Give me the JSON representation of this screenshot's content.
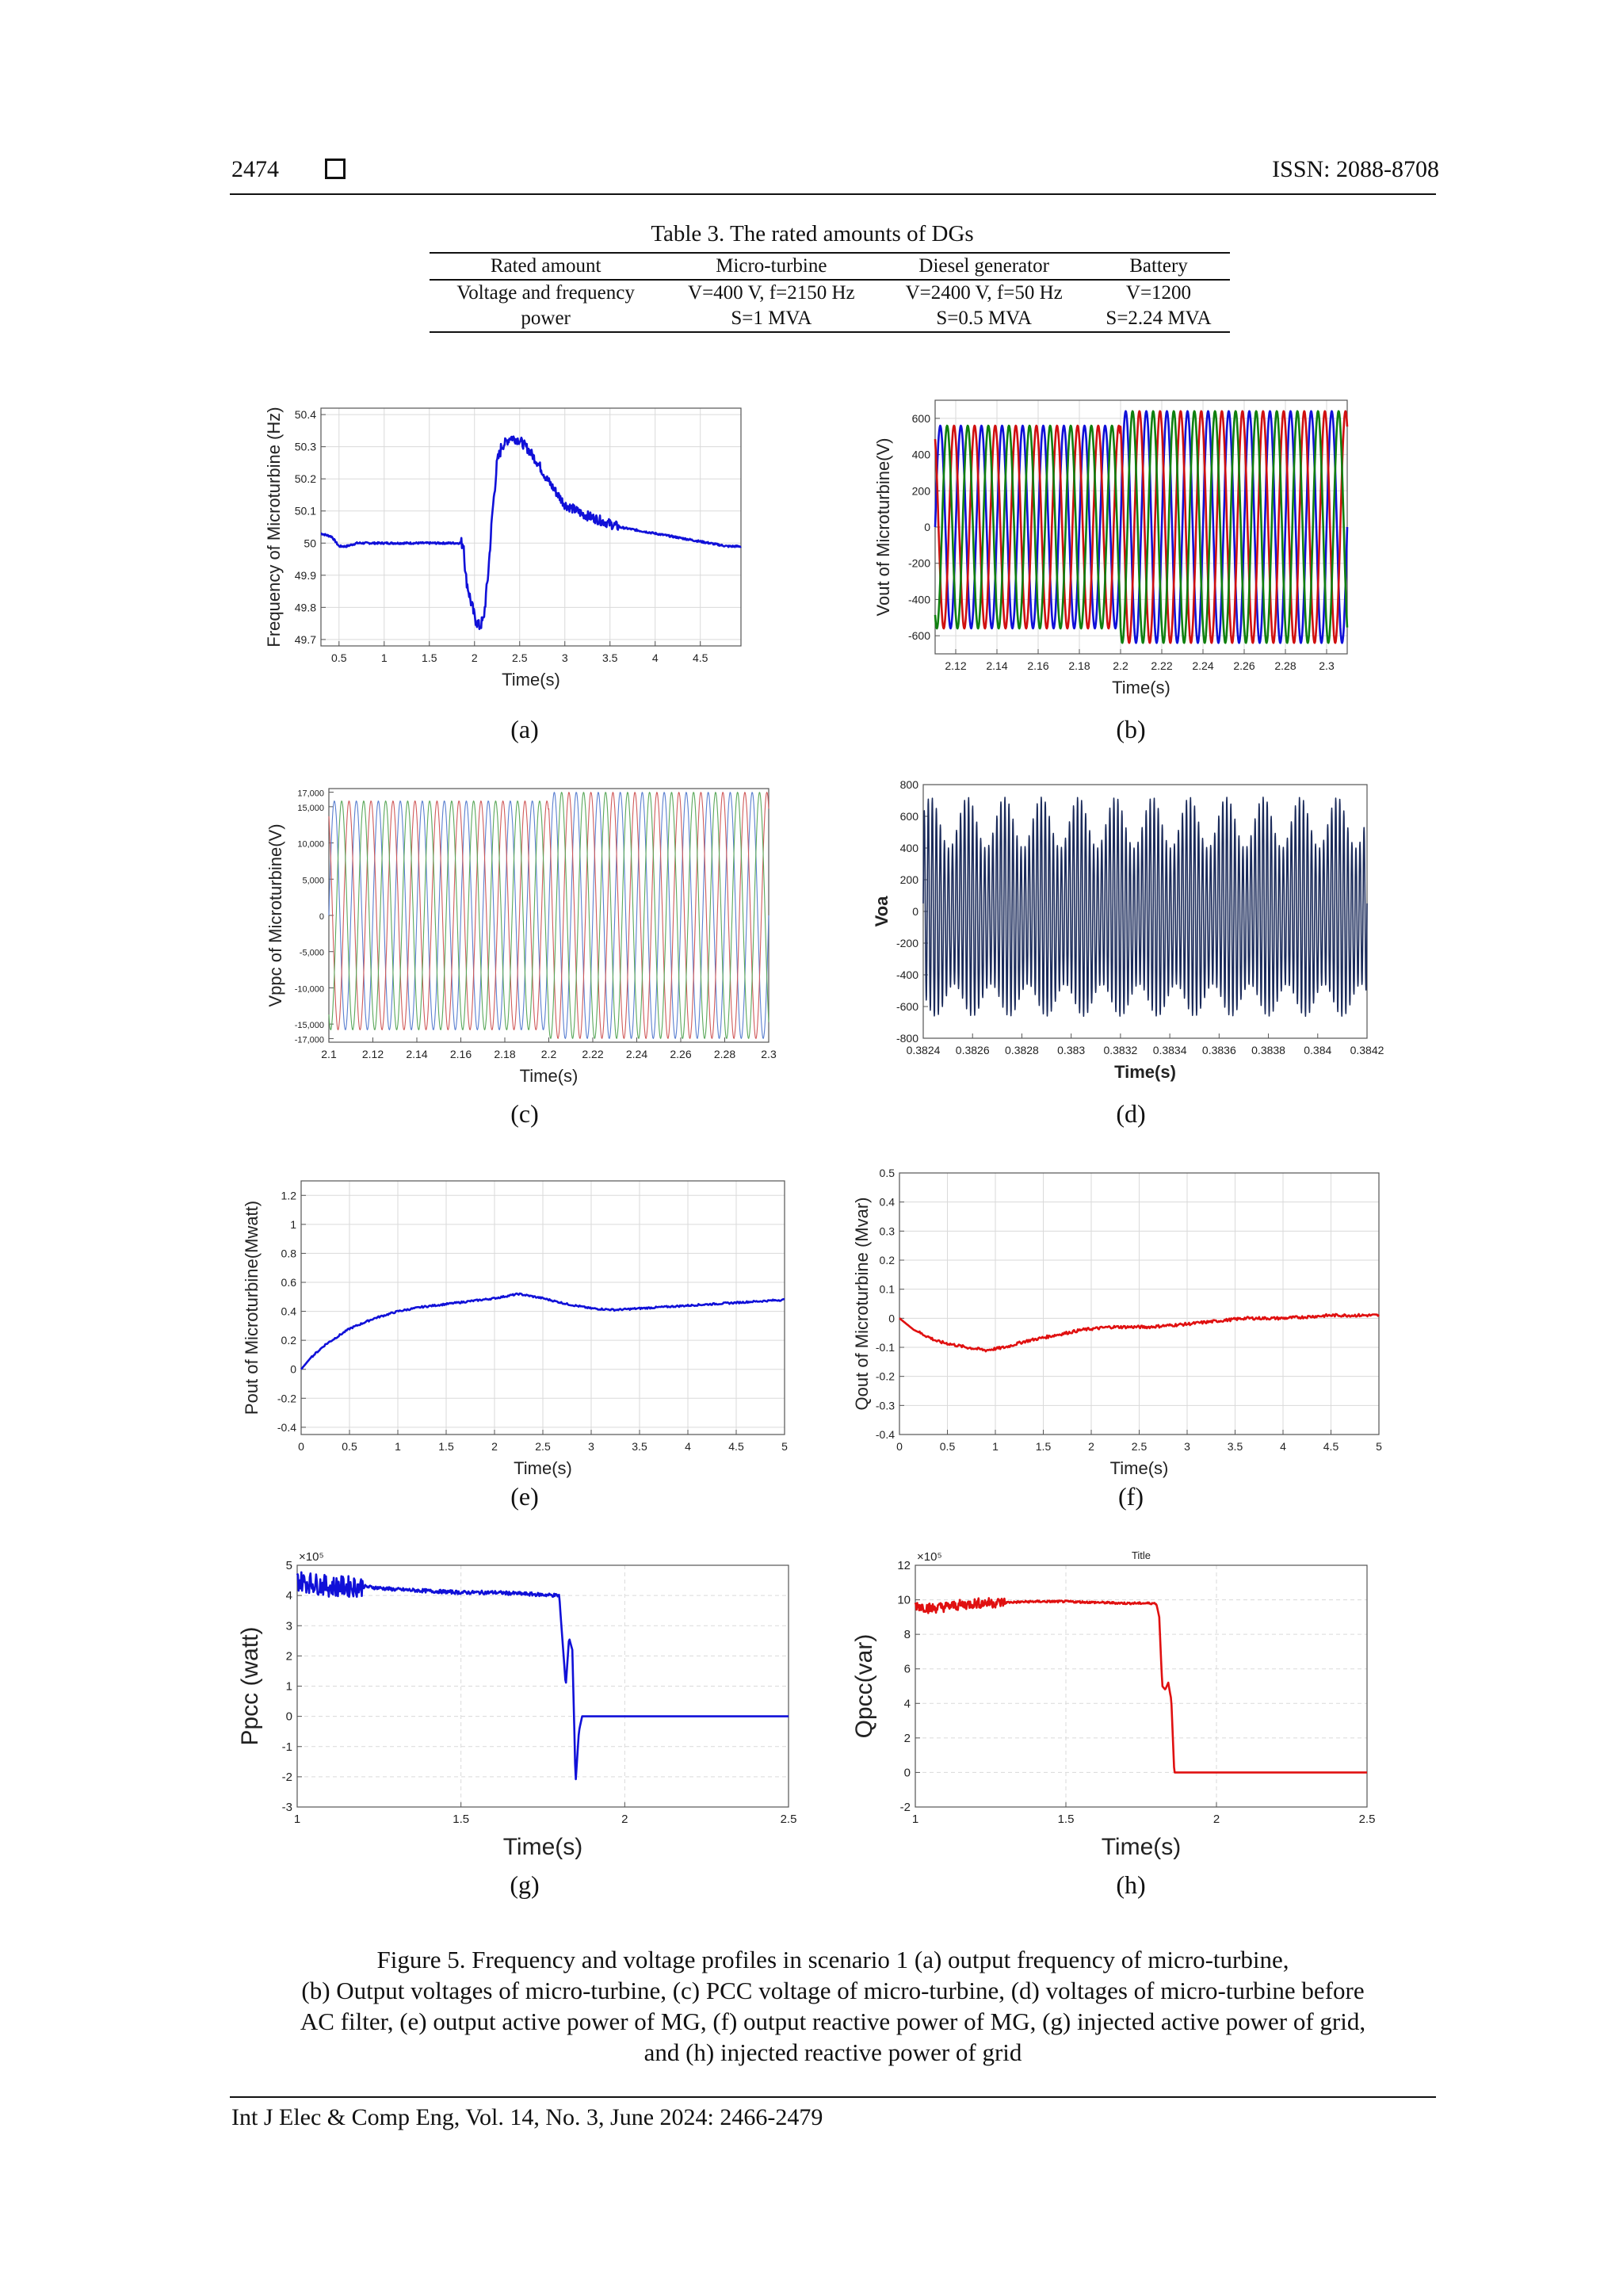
{
  "header": {
    "page_number": "2474",
    "issn": "ISSN: 2088-8708"
  },
  "table": {
    "title": "Table 3. The rated amounts of DGs",
    "headers": [
      "Rated amount",
      "Micro-turbine",
      "Diesel generator",
      "Battery"
    ],
    "rows": [
      [
        "Voltage and frequency",
        "V=400 V, f=2150 Hz",
        "V=2400 V, f=50 Hz",
        "V=1200"
      ],
      [
        "power",
        "S=1 MVA",
        "S=0.5 MVA",
        "S=2.24 MVA"
      ]
    ]
  },
  "subfigure_labels": [
    "(a)",
    "(b)",
    "(c)",
    "(d)",
    "(e)",
    "(f)",
    "(g)",
    "(h)"
  ],
  "caption": {
    "line1": "Figure 5. Frequency and voltage profiles in scenario 1 (a) output frequency of micro-turbine,",
    "line2": "(b) Output voltages of micro-turbine, (c) PCC voltage of micro-turbine, (d) voltages of micro-turbine before",
    "line3": "AC filter, (e) output active power of MG, (f) output reactive power of MG, (g) injected active power of grid,",
    "line4": "and (h) injected reactive power of grid"
  },
  "footer": {
    "text": "Int J Elec & Comp Eng, Vol. 14, No. 3, June 2024: 2466-2479"
  },
  "chart_data": [
    {
      "id": "a",
      "type": "line",
      "xlabel": "Time(s)",
      "ylabel": "Frequency of Microturbine (Hz)",
      "xlim": [
        0.3,
        4.95
      ],
      "ylim": [
        49.68,
        50.42
      ],
      "xticks": [
        0.5,
        1,
        1.5,
        2,
        2.5,
        3,
        3.5,
        4,
        4.5
      ],
      "yticks": [
        49.7,
        49.8,
        49.9,
        50,
        50.1,
        50.2,
        50.3,
        50.4
      ],
      "grid": true,
      "series": [
        {
          "color": "#1010d8",
          "x": [
            0.3,
            0.42,
            0.5,
            0.58,
            0.7,
            0.9,
            1.2,
            1.5,
            1.8,
            1.88,
            1.9,
            1.95,
            2.0,
            2.05,
            2.1,
            2.15,
            2.2,
            2.25,
            2.3,
            2.4,
            2.5,
            2.6,
            2.7,
            2.8,
            2.9,
            3.0,
            3.2,
            3.4,
            3.6,
            3.8,
            4.0,
            4.2,
            4.4,
            4.6,
            4.8,
            4.95
          ],
          "y": [
            50.03,
            50.02,
            49.99,
            49.99,
            50.0,
            50.0,
            50.0,
            50.0,
            50.0,
            50.0,
            49.9,
            49.83,
            49.77,
            49.74,
            49.76,
            49.9,
            50.1,
            50.25,
            50.3,
            50.33,
            50.32,
            50.29,
            50.25,
            50.2,
            50.16,
            50.12,
            50.09,
            50.07,
            50.05,
            50.04,
            50.03,
            50.02,
            50.01,
            50.0,
            49.99,
            49.99
          ]
        }
      ]
    },
    {
      "id": "b",
      "type": "line",
      "xlabel": "Time(s)",
      "ylabel": "Vout of Microturbine(V)",
      "xlim": [
        2.11,
        2.31
      ],
      "ylim": [
        -700,
        700
      ],
      "xticks": [
        2.12,
        2.14,
        2.16,
        2.18,
        2.2,
        2.22,
        2.24,
        2.26,
        2.28,
        2.3
      ],
      "yticks": [
        -600,
        -400,
        -200,
        0,
        200,
        400,
        600
      ],
      "grid": true,
      "amplitude": [
        560,
        640
      ],
      "frequency_hz": 100,
      "series": [
        {
          "color": "#1010d8"
        },
        {
          "color": "#d01010"
        },
        {
          "color": "#108010"
        }
      ]
    },
    {
      "id": "c",
      "type": "line",
      "xlabel": "Time(s)",
      "ylabel": "Vppc of Microturbine(V)",
      "xlim": [
        2.1,
        2.3
      ],
      "ylim": [
        -17500,
        17500
      ],
      "xticks": [
        2.1,
        2.12,
        2.14,
        2.16,
        2.18,
        2.2,
        2.22,
        2.24,
        2.26,
        2.28,
        2.3
      ],
      "yticks": [
        -17000,
        -15000,
        -10000,
        -5000,
        0,
        5000,
        10000,
        15000,
        17000
      ],
      "ytick_labels": [
        "-17,000",
        "-15,000",
        "-10,000",
        "-5,000",
        "0",
        "5,000",
        "10,000",
        "15,000",
        "17,000"
      ],
      "grid": false,
      "amplitude": [
        15800,
        17000
      ],
      "frequency_hz": 100,
      "series": [
        {
          "color": "#5a7fd0"
        },
        {
          "color": "#d05a5a"
        },
        {
          "color": "#5aa85a"
        }
      ]
    },
    {
      "id": "d",
      "type": "line",
      "xlabel": "Time(s)",
      "ylabel": "Voa",
      "xlim": [
        0.3824,
        0.3842
      ],
      "ylim": [
        -800,
        800
      ],
      "xticks": [
        0.3824,
        0.3826,
        0.3828,
        0.383,
        0.3832,
        0.3834,
        0.3836,
        0.3838,
        0.384,
        0.3842
      ],
      "yticks": [
        -800,
        -600,
        -400,
        -200,
        0,
        200,
        400,
        600,
        800
      ],
      "grid": false,
      "series": [
        {
          "color": "#1a2a5a"
        }
      ]
    },
    {
      "id": "e",
      "type": "line",
      "xlabel": "Time(s)",
      "ylabel": "Pout of Microturbine(Mwatt)",
      "xlim": [
        0,
        5
      ],
      "ylim": [
        -0.45,
        1.3
      ],
      "xticks": [
        0,
        0.5,
        1,
        1.5,
        2,
        2.5,
        3,
        3.5,
        4,
        4.5,
        5
      ],
      "yticks": [
        -0.4,
        -0.2,
        0,
        0.2,
        0.4,
        0.6,
        0.8,
        1,
        1.2
      ],
      "grid": true,
      "series": [
        {
          "color": "#1010d8",
          "x": [
            0,
            0.1,
            0.25,
            0.5,
            0.75,
            1.0,
            1.25,
            1.5,
            1.75,
            2.0,
            2.25,
            2.5,
            2.75,
            3.0,
            3.25,
            3.5,
            3.75,
            4.0,
            4.25,
            4.5,
            4.75,
            5.0
          ],
          "y": [
            0.0,
            0.08,
            0.17,
            0.28,
            0.35,
            0.4,
            0.43,
            0.45,
            0.47,
            0.49,
            0.52,
            0.49,
            0.45,
            0.42,
            0.41,
            0.42,
            0.43,
            0.44,
            0.45,
            0.46,
            0.47,
            0.48
          ]
        }
      ]
    },
    {
      "id": "f",
      "type": "line",
      "xlabel": "Time(s)",
      "ylabel": "Qout of Microturbine (Mvar)",
      "xlim": [
        0,
        5
      ],
      "ylim": [
        -0.4,
        0.5
      ],
      "xticks": [
        0,
        0.5,
        1,
        1.5,
        2,
        2.5,
        3,
        3.5,
        4,
        4.5,
        5
      ],
      "yticks": [
        -0.4,
        -0.3,
        -0.2,
        -0.1,
        0,
        0.1,
        0.2,
        0.3,
        0.4,
        0.5
      ],
      "grid": true,
      "series": [
        {
          "color": "#e01010",
          "x": [
            0,
            0.15,
            0.4,
            0.7,
            0.9,
            1.1,
            1.3,
            1.6,
            1.9,
            2.2,
            2.6,
            3.0,
            3.3,
            3.6,
            4.0,
            4.5,
            5.0
          ],
          "y": [
            0.0,
            -0.04,
            -0.08,
            -0.1,
            -0.11,
            -0.1,
            -0.08,
            -0.06,
            -0.04,
            -0.03,
            -0.03,
            -0.02,
            -0.01,
            0.0,
            0.0,
            0.01,
            0.01
          ]
        }
      ]
    },
    {
      "id": "g",
      "type": "line",
      "xlabel": "Time(s)",
      "ylabel": "Ppcc (watt)",
      "y_exponent": "×10⁵",
      "xlim": [
        1,
        2.5
      ],
      "ylim": [
        -3,
        5
      ],
      "xticks": [
        1,
        1.5,
        2,
        2.5
      ],
      "yticks": [
        -3,
        -2,
        -1,
        0,
        1,
        2,
        3,
        4,
        5
      ],
      "grid": true,
      "series": [
        {
          "color": "#1010d8",
          "x": [
            1.0,
            1.05,
            1.1,
            1.2,
            1.3,
            1.4,
            1.5,
            1.6,
            1.7,
            1.8,
            1.82,
            1.83,
            1.84,
            1.85,
            1.86,
            1.87,
            1.9,
            2.0,
            2.2,
            2.5
          ],
          "y": [
            4.5,
            4.4,
            4.3,
            4.3,
            4.2,
            4.15,
            4.1,
            4.1,
            4.05,
            4.0,
            1.0,
            2.6,
            2.2,
            -2.2,
            -0.5,
            0.0,
            0.0,
            0.0,
            0.0,
            0.0
          ]
        }
      ]
    },
    {
      "id": "h",
      "type": "line",
      "title": "Title",
      "xlabel": "Time(s)",
      "ylabel": "Qpcc(var)",
      "y_exponent": "×10⁵",
      "xlim": [
        1,
        2.5
      ],
      "ylim": [
        -2,
        12
      ],
      "xticks": [
        1,
        1.5,
        2,
        2.5
      ],
      "yticks": [
        -2,
        0,
        2,
        4,
        6,
        8,
        10,
        12
      ],
      "grid": true,
      "series": [
        {
          "color": "#e01010",
          "x": [
            1.0,
            1.05,
            1.1,
            1.2,
            1.3,
            1.4,
            1.5,
            1.6,
            1.7,
            1.8,
            1.81,
            1.82,
            1.83,
            1.84,
            1.85,
            1.86,
            1.9,
            2.0,
            2.2,
            2.5
          ],
          "y": [
            9.7,
            9.5,
            9.6,
            9.8,
            9.85,
            9.9,
            9.9,
            9.85,
            9.8,
            9.8,
            9.0,
            5.0,
            4.8,
            5.2,
            4.2,
            0.0,
            0.0,
            0.0,
            0.0,
            0.0
          ]
        }
      ]
    }
  ]
}
